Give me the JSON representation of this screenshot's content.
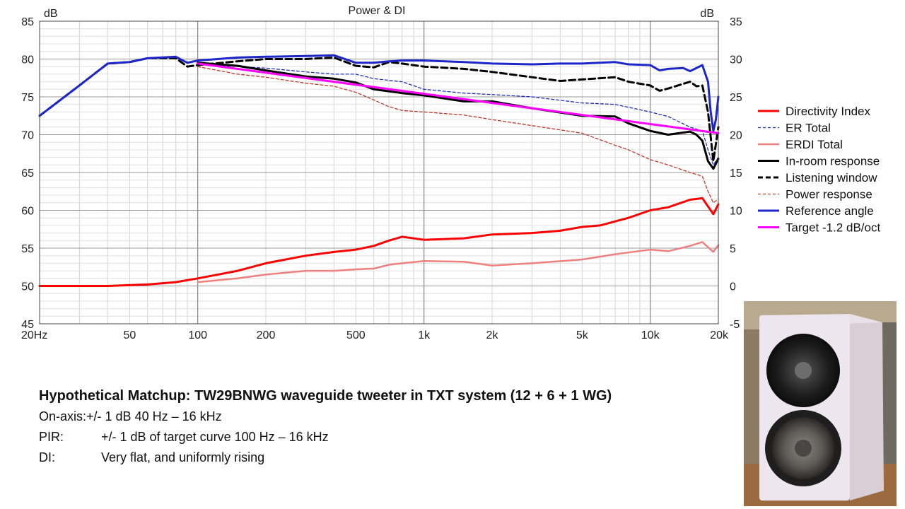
{
  "caption": {
    "headline": "Hypothetical Matchup: TW29BNWG waveguide tweeter in TXT system (12 + 6 + 1 WG)",
    "lines": [
      {
        "label": "On-axis:",
        "text": "+/- 1 dB 40 Hz – 16 kHz"
      },
      {
        "label": "PIR:",
        "text": "+/- 1 dB of target curve 100 Hz – 16 kHz"
      },
      {
        "label": "DI:",
        "text": "Very flat, and uniformly rising"
      }
    ]
  },
  "photo": {
    "subject": "speaker-cabinet-photo"
  },
  "chart_data": {
    "type": "line",
    "title": "Power & DI",
    "left_unit": "dB",
    "right_unit": "dB",
    "x_scale": "log",
    "xlim": [
      20,
      20000
    ],
    "x_ticks": [
      {
        "v": 20,
        "label": "20Hz"
      },
      {
        "v": 50,
        "label": "50"
      },
      {
        "v": 100,
        "label": "100"
      },
      {
        "v": 200,
        "label": "200"
      },
      {
        "v": 500,
        "label": "500"
      },
      {
        "v": 1000,
        "label": "1k"
      },
      {
        "v": 2000,
        "label": "2k"
      },
      {
        "v": 5000,
        "label": "5k"
      },
      {
        "v": 10000,
        "label": "10k"
      },
      {
        "v": 20000,
        "label": "20k"
      }
    ],
    "ylim_left": [
      45,
      85
    ],
    "y_ticks_left": [
      "45",
      "50",
      "55",
      "60",
      "65",
      "70",
      "75",
      "80",
      "85"
    ],
    "ylim_right": [
      -5,
      35
    ],
    "y_ticks_right": [
      "-5",
      "0",
      "5",
      "10",
      "15",
      "20",
      "25",
      "30",
      "35"
    ],
    "grid": true,
    "legend_position": "right",
    "series": [
      {
        "name": "Directivity Index",
        "axis": "right",
        "color": "#ff0000",
        "style": "solid",
        "width": 3,
        "x": [
          20,
          40,
          60,
          80,
          100,
          150,
          200,
          300,
          400,
          500,
          600,
          700,
          800,
          1000,
          1500,
          2000,
          3000,
          4000,
          5000,
          6000,
          8000,
          10000,
          12000,
          15000,
          17000,
          19000,
          20000
        ],
        "y": [
          0,
          0,
          0.2,
          0.5,
          1,
          2,
          3,
          4,
          4.5,
          4.8,
          5.3,
          6,
          6.5,
          6.1,
          6.3,
          6.8,
          7,
          7.3,
          7.8,
          8,
          9,
          10,
          10.4,
          11.4,
          11.6,
          9.5,
          10.8
        ]
      },
      {
        "name": "ER Total",
        "axis": "left",
        "color": "#2233bb",
        "style": "dash",
        "width": 1.3,
        "x": [
          100,
          150,
          200,
          300,
          400,
          500,
          600,
          800,
          1000,
          1500,
          2000,
          3000,
          5000,
          7000,
          10000,
          12000,
          15000,
          17000,
          18000,
          19000,
          20000
        ],
        "y": [
          79.3,
          79,
          78.8,
          78.3,
          78,
          78,
          77.4,
          77,
          76,
          75.5,
          75.3,
          75,
          74.2,
          74,
          73,
          72.4,
          71,
          70.5,
          68,
          66,
          67
        ]
      },
      {
        "name": "ERDI Total",
        "axis": "right",
        "color": "#f08080",
        "style": "solid",
        "width": 2.5,
        "x": [
          100,
          150,
          200,
          300,
          400,
          500,
          600,
          700,
          800,
          1000,
          1500,
          2000,
          3000,
          5000,
          7000,
          10000,
          12000,
          15000,
          17000,
          19000,
          20000
        ],
        "y": [
          0.5,
          1,
          1.5,
          2,
          2,
          2.2,
          2.3,
          2.8,
          3,
          3.3,
          3.2,
          2.7,
          3,
          3.5,
          4.2,
          4.8,
          4.6,
          5.3,
          5.8,
          4.5,
          5.4
        ]
      },
      {
        "name": "In-room response",
        "axis": "left",
        "color": "#000000",
        "style": "solid",
        "width": 3,
        "x": [
          100,
          150,
          200,
          300,
          400,
          500,
          600,
          800,
          1000,
          1500,
          2000,
          3000,
          5000,
          7000,
          8000,
          10000,
          12000,
          15000,
          16000,
          17000,
          18000,
          19000,
          20000
        ],
        "y": [
          79.5,
          79.1,
          78.5,
          77.7,
          77.4,
          76.9,
          76,
          75.5,
          75.2,
          74.4,
          74.4,
          73.5,
          72.5,
          72.4,
          71.5,
          70.5,
          70,
          70.4,
          70,
          69.2,
          66.5,
          65.5,
          66.8
        ]
      },
      {
        "name": "Listening window",
        "axis": "left",
        "color": "#000000",
        "style": "dash",
        "width": 3,
        "x": [
          20,
          30,
          40,
          50,
          60,
          80,
          90,
          100,
          150,
          200,
          300,
          400,
          500,
          600,
          700,
          800,
          1000,
          1500,
          2000,
          3000,
          4000,
          5000,
          7000,
          8000,
          10000,
          11000,
          12000,
          15000,
          16000,
          17000,
          18000,
          19000,
          20000
        ],
        "y": [
          72.5,
          76.5,
          79.4,
          79.6,
          80.1,
          80.1,
          79,
          79.2,
          79.7,
          80,
          80,
          80.2,
          79.1,
          78.9,
          79.6,
          79.4,
          79,
          78.7,
          78.3,
          77.6,
          77.1,
          77.3,
          77.6,
          77,
          76.5,
          75.8,
          76.1,
          77,
          76.4,
          76.5,
          73,
          66.5,
          71
        ]
      },
      {
        "name": "Power response",
        "axis": "left",
        "color": "#c0392b",
        "style": "dash",
        "width": 1.3,
        "x": [
          100,
          150,
          200,
          300,
          400,
          500,
          600,
          700,
          800,
          1000,
          1500,
          2000,
          3000,
          5000,
          7000,
          8000,
          10000,
          12000,
          15000,
          17000,
          18000,
          19000,
          20000
        ],
        "y": [
          79,
          78,
          77.6,
          76.8,
          76.4,
          75.6,
          74.6,
          73.7,
          73.2,
          73,
          72.6,
          72,
          71.2,
          70.2,
          68.6,
          68,
          66.7,
          66,
          65,
          64.5,
          62.5,
          61,
          61.5
        ]
      },
      {
        "name": "Reference angle",
        "axis": "left",
        "color": "#1d27c9",
        "style": "solid",
        "width": 3,
        "x": [
          20,
          30,
          40,
          50,
          60,
          80,
          90,
          100,
          150,
          200,
          300,
          400,
          500,
          600,
          700,
          800,
          1000,
          1500,
          2000,
          3000,
          4000,
          5000,
          7000,
          8000,
          10000,
          11000,
          12000,
          14000,
          15000,
          17000,
          18000,
          18500,
          19000,
          19500,
          20000
        ],
        "y": [
          72.5,
          76.5,
          79.4,
          79.6,
          80.1,
          80.3,
          79.5,
          79.8,
          80.2,
          80.3,
          80.4,
          80.5,
          79.5,
          79.5,
          79.7,
          79.8,
          79.8,
          79.6,
          79.4,
          79.3,
          79.4,
          79.4,
          79.6,
          79.3,
          79.2,
          78.5,
          78.7,
          78.8,
          78.4,
          79.2,
          77,
          73,
          70.5,
          72,
          75
        ]
      },
      {
        "name": "Target -1.2 dB/oct",
        "axis": "left",
        "color": "#ff00ff",
        "style": "solid",
        "width": 3,
        "x": [
          100,
          20000
        ],
        "y": [
          79.4,
          70.2
        ]
      }
    ]
  }
}
